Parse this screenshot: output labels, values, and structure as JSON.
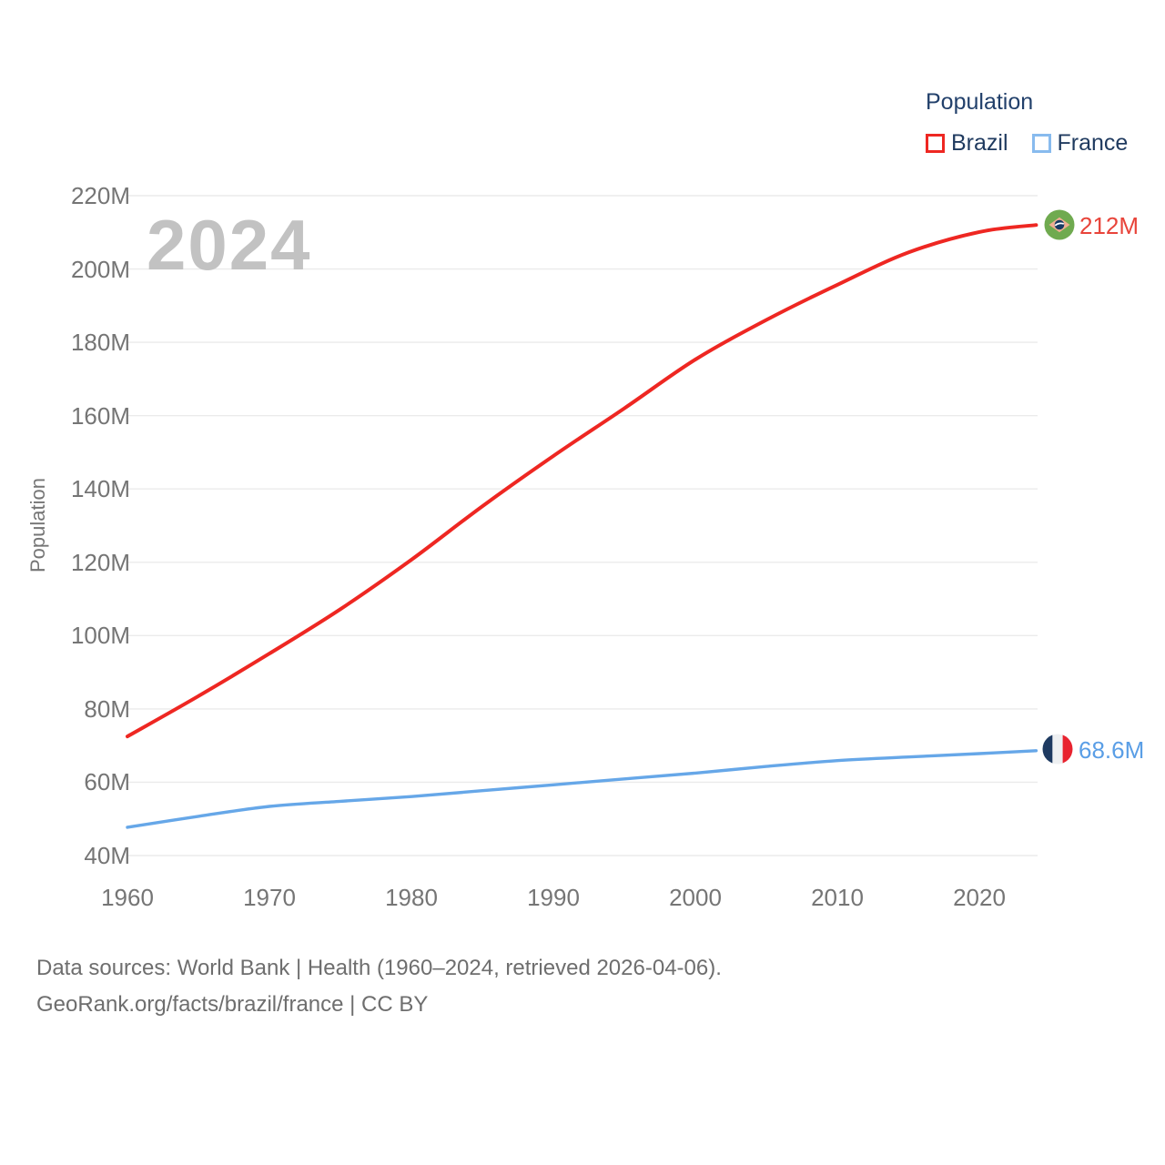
{
  "legend": {
    "title": "Population",
    "items": [
      {
        "label": "Brazil",
        "color": "#ee2722"
      },
      {
        "label": "France",
        "color": "#88bbee"
      }
    ]
  },
  "watermark_year": "2024",
  "footer": {
    "line1": "Data sources: World Bank | Health (1960–2024, retrieved 2026-04-06).",
    "line2": "GeoRank.org/facts/brazil/france | CC BY"
  },
  "chart_data": {
    "type": "line",
    "title": "Population",
    "xlabel": "",
    "ylabel": "Population",
    "x": [
      1960,
      1965,
      1970,
      1975,
      1980,
      1985,
      1990,
      1995,
      2000,
      2005,
      2010,
      2015,
      2020,
      2024
    ],
    "series": [
      {
        "name": "Brazil",
        "color": "#ee2722",
        "values": [
          72.5,
          83.5,
          95.1,
          107.2,
          120.7,
          135.3,
          149.0,
          162.0,
          175.3,
          186.1,
          195.7,
          204.5,
          210.1,
          212.0
        ],
        "end_label": "212M",
        "end_flag": "brazil-flag-icon"
      },
      {
        "name": "France",
        "color": "#66a7e8",
        "values": [
          47.7,
          50.7,
          53.4,
          54.8,
          56.1,
          57.7,
          59.3,
          60.9,
          62.5,
          64.3,
          65.9,
          66.9,
          67.8,
          68.6
        ],
        "end_label": "68.6M",
        "end_flag": "france-flag-icon"
      }
    ],
    "x_ticks": [
      1960,
      1970,
      1980,
      1990,
      2000,
      2010,
      2020
    ],
    "y_ticks": [
      40,
      60,
      80,
      100,
      120,
      140,
      160,
      180,
      200,
      220
    ],
    "y_tick_suffix": "M",
    "xlim": [
      1960,
      2024
    ],
    "ylim": [
      40,
      220
    ],
    "grid": "horizontal",
    "legend_position": "top-right",
    "units": "millions of people"
  }
}
